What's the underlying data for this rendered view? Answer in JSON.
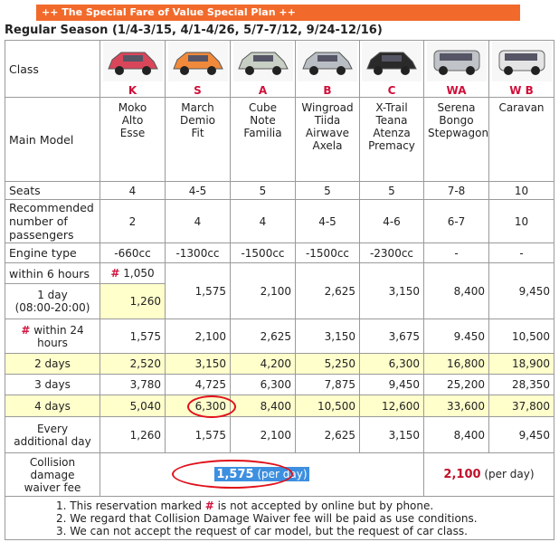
{
  "header": {
    "banner": "++ The Special Fare of Value Special Plan ++",
    "title": "Regular Season (1/4-3/15, 4/1-4/26, 5/7-7/12, 9/24-12/16)"
  },
  "table": {
    "class_label": "Class",
    "classes": [
      "K",
      "S",
      "A",
      "B",
      "C",
      "WA",
      "W B"
    ],
    "model_label": "Main Model",
    "models": [
      [
        "Moko",
        "Alto",
        "Esse"
      ],
      [
        "March",
        "Demio",
        "Fit"
      ],
      [
        "Cube",
        "Note",
        "Familia"
      ],
      [
        "Wingroad",
        "Tiida",
        "Airwave",
        "Axela"
      ],
      [
        "X-Trail",
        "Teana",
        "Atenza",
        "Premacy"
      ],
      [
        "Serena",
        "Bongo",
        "Stepwagon"
      ],
      [
        "Caravan"
      ]
    ],
    "seats": {
      "label": "Seats",
      "values": [
        "4",
        "4-5",
        "5",
        "5",
        "5",
        "7-8",
        "10"
      ]
    },
    "passengers": {
      "label": [
        "Recommended",
        "number of",
        "passengers"
      ],
      "values": [
        "2",
        "4",
        "4",
        "4-5",
        "4-6",
        "6-7",
        "10"
      ]
    },
    "engine": {
      "label": "Engine type",
      "values": [
        "-660cc",
        "-1300cc",
        "-1500cc",
        "-1500cc",
        "-2300cc",
        "-",
        "-"
      ]
    },
    "short": {
      "label6": "within 6 hours",
      "mark": "#",
      "k6": "1,050",
      "label1": [
        "1 day",
        "(08:00-20:00)"
      ],
      "k1": "1,260",
      "values": [
        "1,575",
        "2,100",
        "2,625",
        "3,150",
        "8,400",
        "9,450"
      ]
    },
    "h24": {
      "mark": "#",
      "label": [
        "within 24",
        "hours"
      ],
      "values": [
        "1,575",
        "2,100",
        "2,625",
        "3,150",
        "3,675",
        "9.450",
        "10,500"
      ]
    },
    "days": [
      {
        "label": "2 days",
        "values": [
          "2,520",
          "3,150",
          "4,200",
          "5,250",
          "6,300",
          "16,800",
          "18,900"
        ]
      },
      {
        "label": "3 days",
        "values": [
          "3,780",
          "4,725",
          "6,300",
          "7,875",
          "9,450",
          "25,200",
          "28,350"
        ]
      },
      {
        "label": "4 days",
        "values": [
          "5,040",
          "6,300",
          "8,400",
          "10,500",
          "12,600",
          "33,600",
          "37,800"
        ]
      }
    ],
    "additional": {
      "label": [
        "Every",
        "additional day"
      ],
      "values": [
        "1,260",
        "1,575",
        "2,100",
        "2,625",
        "3,150",
        "8,400",
        "9,450"
      ]
    },
    "cdw": {
      "label": [
        "Collision",
        "damage",
        "waiver fee"
      ],
      "small": {
        "amount": "1,575",
        "unit": "(per day)"
      },
      "large": {
        "amount": "2,100",
        "unit": "(per day)"
      }
    },
    "notes": [
      [
        "1. This reservation marked ",
        "#",
        " is not accepted by online but by phone."
      ],
      [
        "2. We regard that Collision Damage Waiver fee will be paid as use conditions."
      ],
      [
        "3. We can not accept the request of car model, but the request of car class."
      ]
    ]
  }
}
